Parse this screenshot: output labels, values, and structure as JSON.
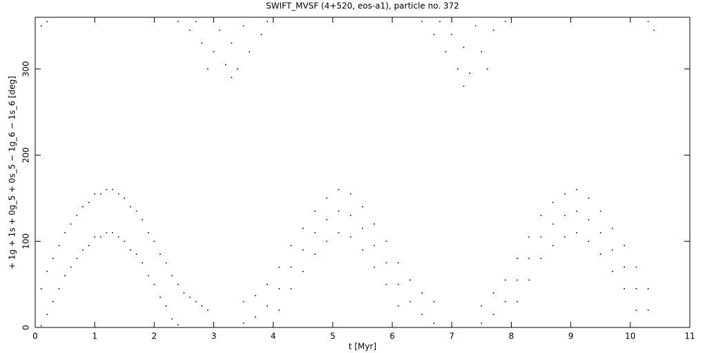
{
  "chart_data": {
    "type": "scatter",
    "title": "SWIFT_MVSF (4+520, eos-a1), particle no. 372",
    "x_label": "t [Myr]",
    "y_label": "+ 1g + 1s + 0g_5 + 0s_5 − 1g_6 − 1s_6 [deg]",
    "color": "#000000",
    "xlim": [
      0,
      11
    ],
    "xticks": [
      0,
      1,
      2,
      3,
      4,
      5,
      6,
      7,
      8,
      9,
      10,
      11
    ],
    "ylim": [
      0,
      360
    ],
    "yticks": [
      0,
      100,
      200,
      300
    ],
    "x": [
      0.1,
      0.2,
      0.3,
      0.4,
      0.5,
      0.6,
      0.7,
      0.8,
      0.9,
      1.0,
      1.1,
      1.2,
      1.3,
      1.4,
      1.5,
      1.6,
      1.7,
      1.8,
      1.9,
      2.0,
      2.1,
      2.2,
      2.3,
      2.4,
      2.5,
      2.6,
      2.7,
      2.8,
      2.9,
      0.1,
      0.2,
      0.3,
      0.4,
      0.5,
      0.6,
      0.7,
      0.8,
      0.9,
      1.0,
      1.1,
      1.2,
      1.3,
      1.4,
      1.5,
      1.6,
      1.7,
      1.8,
      1.9,
      2.0,
      2.1,
      2.2,
      2.3,
      2.4,
      3.5,
      3.7,
      3.9,
      4.1,
      4.3,
      4.5,
      4.7,
      4.9,
      5.1,
      5.3,
      5.5,
      5.7,
      5.9,
      6.1,
      6.3,
      6.5,
      6.7,
      3.5,
      3.7,
      3.9,
      4.1,
      4.3,
      4.5,
      4.7,
      4.9,
      5.1,
      5.3,
      5.5,
      5.7,
      5.9,
      6.1,
      6.3,
      6.5,
      6.7,
      4.1,
      4.3,
      4.5,
      4.7,
      4.9,
      5.1,
      5.3,
      5.5,
      5.7,
      5.9,
      6.1,
      7.5,
      7.7,
      7.9,
      8.1,
      8.3,
      8.5,
      8.7,
      8.9,
      9.1,
      9.3,
      9.5,
      9.7,
      9.9,
      10.1,
      10.3,
      7.5,
      7.7,
      7.9,
      8.1,
      8.3,
      8.5,
      8.7,
      8.9,
      9.1,
      9.3,
      9.5,
      9.7,
      9.9,
      10.1,
      10.3,
      8.1,
      8.3,
      8.5,
      8.7,
      8.9,
      9.1,
      9.3,
      9.5,
      9.7,
      9.9,
      10.1,
      2.4,
      2.6,
      2.8,
      3.0,
      3.2,
      3.3,
      3.4,
      3.6,
      3.8,
      3.9,
      2.7,
      3.1,
      3.5,
      3.3,
      2.9,
      6.5,
      6.7,
      6.9,
      7.1,
      7.2,
      7.3,
      7.5,
      7.7,
      7.9,
      6.8,
      7.0,
      7.4,
      7.2,
      7.6,
      0.1,
      0.2,
      10.3,
      10.4
    ],
    "values": [
      45,
      65,
      80,
      95,
      110,
      120,
      130,
      140,
      145,
      155,
      155,
      160,
      160,
      155,
      150,
      140,
      135,
      125,
      110,
      100,
      85,
      75,
      60,
      50,
      40,
      35,
      30,
      25,
      20,
      2,
      15,
      30,
      45,
      60,
      70,
      80,
      90,
      95,
      105,
      105,
      110,
      110,
      105,
      100,
      90,
      85,
      75,
      60,
      50,
      35,
      25,
      10,
      3,
      30,
      37,
      50,
      70,
      95,
      115,
      135,
      150,
      160,
      155,
      140,
      120,
      100,
      75,
      55,
      40,
      30,
      5,
      12,
      25,
      45,
      70,
      90,
      110,
      125,
      135,
      130,
      115,
      95,
      75,
      50,
      30,
      15,
      5,
      20,
      45,
      65,
      85,
      100,
      110,
      105,
      90,
      70,
      50,
      25,
      25,
      40,
      55,
      80,
      105,
      130,
      145,
      155,
      160,
      150,
      135,
      115,
      95,
      70,
      45,
      5,
      15,
      30,
      55,
      80,
      105,
      120,
      130,
      135,
      125,
      110,
      90,
      70,
      45,
      20,
      30,
      55,
      80,
      95,
      105,
      110,
      100,
      85,
      65,
      45,
      20,
      355,
      345,
      330,
      320,
      305,
      290,
      300,
      320,
      340,
      355,
      355,
      345,
      350,
      330,
      300,
      355,
      340,
      320,
      300,
      280,
      295,
      320,
      345,
      355,
      355,
      340,
      350,
      325,
      300,
      350,
      355,
      355,
      345
    ]
  }
}
